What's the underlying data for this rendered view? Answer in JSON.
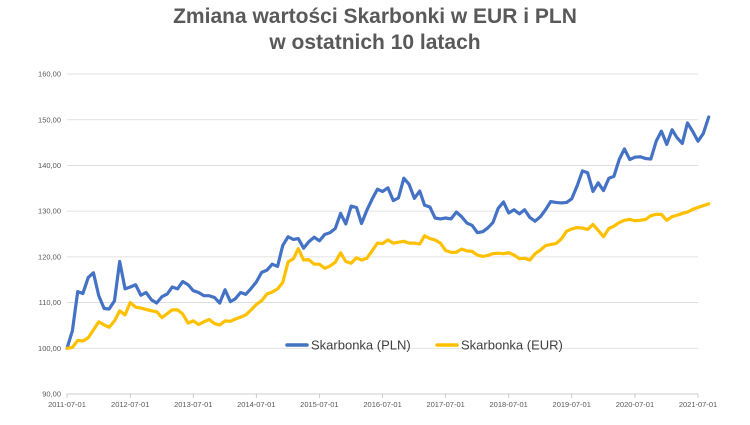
{
  "chart_data": {
    "type": "line",
    "title_lines": [
      "Zmiana wartości Skarbonki w EUR  i PLN",
      "w ostatnich 10 latach"
    ],
    "xlabel": "",
    "ylabel": "",
    "ylim": [
      90,
      160
    ],
    "y_ticks": [
      90,
      100,
      110,
      120,
      130,
      140,
      150,
      160
    ],
    "y_tick_labels": [
      "90,00",
      "100,00",
      "110,00",
      "120,00",
      "130,00",
      "140,00",
      "150,00",
      "160,00"
    ],
    "x_tick_labels": [
      "2011-07-01",
      "2012-07-01",
      "2013-07-01",
      "2014-07-01",
      "2015-07-01",
      "2016-07-01",
      "2017-07-01",
      "2018-07-01",
      "2019-07-01",
      "2020-07-01",
      "2021-07-01"
    ],
    "legend_position": "inside-bottom-center",
    "grid": "horizontal",
    "series": [
      {
        "name": "Skarbonka (PLN)",
        "color": "#4472C4",
        "points": [
          [
            "2011-07-01",
            100.0
          ],
          [
            "2011-08-01",
            103.8
          ],
          [
            "2011-09-01",
            112.4
          ],
          [
            "2011-10-01",
            112.0
          ],
          [
            "2011-11-01",
            115.5
          ],
          [
            "2011-12-01",
            116.5
          ],
          [
            "2012-01-01",
            111.5
          ],
          [
            "2012-02-01",
            108.7
          ],
          [
            "2012-03-01",
            108.6
          ],
          [
            "2012-04-01",
            110.4
          ],
          [
            "2012-05-01",
            119.0
          ],
          [
            "2012-06-01",
            113.0
          ],
          [
            "2012-07-01",
            113.4
          ],
          [
            "2012-08-01",
            113.9
          ],
          [
            "2012-09-01",
            111.6
          ],
          [
            "2012-10-01",
            112.2
          ],
          [
            "2012-11-01",
            110.6
          ],
          [
            "2012-12-01",
            109.9
          ],
          [
            "2013-01-01",
            111.3
          ],
          [
            "2013-02-01",
            111.9
          ],
          [
            "2013-03-01",
            113.4
          ],
          [
            "2013-04-01",
            113.0
          ],
          [
            "2013-05-01",
            114.6
          ],
          [
            "2013-06-01",
            113.9
          ],
          [
            "2013-07-01",
            112.6
          ],
          [
            "2013-08-01",
            112.2
          ],
          [
            "2013-09-01",
            111.5
          ],
          [
            "2013-10-01",
            111.5
          ],
          [
            "2013-11-01",
            111.1
          ],
          [
            "2013-12-01",
            109.9
          ],
          [
            "2014-01-01",
            112.8
          ],
          [
            "2014-02-01",
            110.2
          ],
          [
            "2014-03-01",
            110.8
          ],
          [
            "2014-04-01",
            112.2
          ],
          [
            "2014-05-01",
            111.8
          ],
          [
            "2014-06-01",
            113.1
          ],
          [
            "2014-07-01",
            114.5
          ],
          [
            "2014-08-01",
            116.6
          ],
          [
            "2014-09-01",
            117.1
          ],
          [
            "2014-10-01",
            118.4
          ],
          [
            "2014-11-01",
            117.9
          ],
          [
            "2014-12-01",
            122.5
          ],
          [
            "2015-01-01",
            124.4
          ],
          [
            "2015-02-01",
            123.8
          ],
          [
            "2015-03-01",
            124.0
          ],
          [
            "2015-04-01",
            121.9
          ],
          [
            "2015-05-01",
            123.3
          ],
          [
            "2015-06-01",
            124.3
          ],
          [
            "2015-07-01",
            123.5
          ],
          [
            "2015-08-01",
            124.9
          ],
          [
            "2015-09-01",
            125.3
          ],
          [
            "2015-10-01",
            126.2
          ],
          [
            "2015-11-01",
            129.5
          ],
          [
            "2015-12-01",
            127.2
          ],
          [
            "2016-01-01",
            131.1
          ],
          [
            "2016-02-01",
            130.8
          ],
          [
            "2016-03-01",
            127.3
          ],
          [
            "2016-04-01",
            130.2
          ],
          [
            "2016-05-01",
            132.6
          ],
          [
            "2016-06-01",
            134.8
          ],
          [
            "2016-07-01",
            134.3
          ],
          [
            "2016-08-01",
            135.1
          ],
          [
            "2016-09-01",
            132.3
          ],
          [
            "2016-10-01",
            132.9
          ],
          [
            "2016-11-01",
            137.2
          ],
          [
            "2016-12-01",
            135.9
          ],
          [
            "2017-01-01",
            132.8
          ],
          [
            "2017-02-01",
            134.4
          ],
          [
            "2017-03-01",
            131.3
          ],
          [
            "2017-04-01",
            130.9
          ],
          [
            "2017-05-01",
            128.5
          ],
          [
            "2017-06-01",
            128.3
          ],
          [
            "2017-07-01",
            128.5
          ],
          [
            "2017-08-01",
            128.3
          ],
          [
            "2017-09-01",
            129.8
          ],
          [
            "2017-10-01",
            128.8
          ],
          [
            "2017-11-01",
            127.4
          ],
          [
            "2017-12-01",
            126.9
          ],
          [
            "2018-01-01",
            125.3
          ],
          [
            "2018-02-01",
            125.5
          ],
          [
            "2018-03-01",
            126.3
          ],
          [
            "2018-04-01",
            127.5
          ],
          [
            "2018-05-01",
            130.6
          ],
          [
            "2018-06-01",
            132.0
          ],
          [
            "2018-07-01",
            129.6
          ],
          [
            "2018-08-01",
            130.3
          ],
          [
            "2018-09-01",
            129.4
          ],
          [
            "2018-10-01",
            130.3
          ],
          [
            "2018-11-01",
            128.6
          ],
          [
            "2018-12-01",
            127.8
          ],
          [
            "2019-01-01",
            128.8
          ],
          [
            "2019-02-01",
            130.4
          ],
          [
            "2019-03-01",
            132.1
          ],
          [
            "2019-04-01",
            131.9
          ],
          [
            "2019-05-01",
            131.8
          ],
          [
            "2019-06-01",
            131.9
          ],
          [
            "2019-07-01",
            132.7
          ],
          [
            "2019-08-01",
            135.5
          ],
          [
            "2019-09-01",
            138.8
          ],
          [
            "2019-10-01",
            138.4
          ],
          [
            "2019-11-01",
            134.3
          ],
          [
            "2019-12-01",
            136.2
          ],
          [
            "2020-01-01",
            134.5
          ],
          [
            "2020-02-01",
            137.2
          ],
          [
            "2020-03-01",
            137.6
          ],
          [
            "2020-04-01",
            141.3
          ],
          [
            "2020-05-01",
            143.6
          ],
          [
            "2020-06-01",
            141.3
          ],
          [
            "2020-07-01",
            141.8
          ],
          [
            "2020-08-01",
            141.9
          ],
          [
            "2020-09-01",
            141.5
          ],
          [
            "2020-10-01",
            141.4
          ],
          [
            "2020-11-01",
            145.3
          ],
          [
            "2020-12-01",
            147.5
          ],
          [
            "2021-01-01",
            144.6
          ],
          [
            "2021-02-01",
            147.8
          ],
          [
            "2021-03-01",
            146.1
          ],
          [
            "2021-04-01",
            144.8
          ],
          [
            "2021-05-01",
            149.3
          ],
          [
            "2021-06-01",
            147.4
          ],
          [
            "2021-07-01",
            145.3
          ],
          [
            "2021-08-01",
            147.0
          ],
          [
            "2021-09-01",
            150.6
          ]
        ]
      },
      {
        "name": "Skarbonka (EUR)",
        "color": "#FFC000",
        "points": [
          [
            "2011-07-01",
            100.0
          ],
          [
            "2011-08-01",
            100.2
          ],
          [
            "2011-09-01",
            101.7
          ],
          [
            "2011-10-01",
            101.6
          ],
          [
            "2011-11-01",
            102.3
          ],
          [
            "2011-12-01",
            104.0
          ],
          [
            "2012-01-01",
            105.8
          ],
          [
            "2012-02-01",
            105.1
          ],
          [
            "2012-03-01",
            104.6
          ],
          [
            "2012-04-01",
            106.0
          ],
          [
            "2012-05-01",
            108.2
          ],
          [
            "2012-06-01",
            107.3
          ],
          [
            "2012-07-01",
            110.0
          ],
          [
            "2012-08-01",
            109.0
          ],
          [
            "2012-09-01",
            108.8
          ],
          [
            "2012-10-01",
            108.5
          ],
          [
            "2012-11-01",
            108.2
          ],
          [
            "2012-12-01",
            108.0
          ],
          [
            "2013-01-01",
            106.7
          ],
          [
            "2013-02-01",
            107.6
          ],
          [
            "2013-03-01",
            108.4
          ],
          [
            "2013-04-01",
            108.4
          ],
          [
            "2013-05-01",
            107.5
          ],
          [
            "2013-06-01",
            105.5
          ],
          [
            "2013-07-01",
            106.0
          ],
          [
            "2013-08-01",
            105.2
          ],
          [
            "2013-09-01",
            105.8
          ],
          [
            "2013-10-01",
            106.3
          ],
          [
            "2013-11-01",
            105.4
          ],
          [
            "2013-12-01",
            105.1
          ],
          [
            "2014-01-01",
            106.0
          ],
          [
            "2014-02-01",
            105.9
          ],
          [
            "2014-03-01",
            106.4
          ],
          [
            "2014-04-01",
            106.8
          ],
          [
            "2014-05-01",
            107.3
          ],
          [
            "2014-06-01",
            108.4
          ],
          [
            "2014-07-01",
            109.6
          ],
          [
            "2014-08-01",
            110.4
          ],
          [
            "2014-09-01",
            111.9
          ],
          [
            "2014-10-01",
            112.3
          ],
          [
            "2014-11-01",
            113.0
          ],
          [
            "2014-12-01",
            114.4
          ],
          [
            "2015-01-01",
            118.9
          ],
          [
            "2015-02-01",
            119.6
          ],
          [
            "2015-03-01",
            121.8
          ],
          [
            "2015-04-01",
            119.3
          ],
          [
            "2015-05-01",
            119.4
          ],
          [
            "2015-06-01",
            118.4
          ],
          [
            "2015-07-01",
            118.4
          ],
          [
            "2015-08-01",
            117.5
          ],
          [
            "2015-09-01",
            118.0
          ],
          [
            "2015-10-01",
            118.8
          ],
          [
            "2015-11-01",
            120.9
          ],
          [
            "2015-12-01",
            119.0
          ],
          [
            "2016-01-01",
            118.6
          ],
          [
            "2016-02-01",
            119.8
          ],
          [
            "2016-03-01",
            119.3
          ],
          [
            "2016-04-01",
            119.7
          ],
          [
            "2016-05-01",
            121.3
          ],
          [
            "2016-06-01",
            123.0
          ],
          [
            "2016-07-01",
            122.9
          ],
          [
            "2016-08-01",
            123.7
          ],
          [
            "2016-09-01",
            123.0
          ],
          [
            "2016-10-01",
            123.2
          ],
          [
            "2016-11-01",
            123.4
          ],
          [
            "2016-12-01",
            123.0
          ],
          [
            "2017-01-01",
            123.0
          ],
          [
            "2017-02-01",
            122.8
          ],
          [
            "2017-03-01",
            124.6
          ],
          [
            "2017-04-01",
            124.0
          ],
          [
            "2017-05-01",
            123.7
          ],
          [
            "2017-06-01",
            123.0
          ],
          [
            "2017-07-01",
            121.4
          ],
          [
            "2017-08-01",
            121.0
          ],
          [
            "2017-09-01",
            121.0
          ],
          [
            "2017-10-01",
            121.7
          ],
          [
            "2017-11-01",
            121.3
          ],
          [
            "2017-12-01",
            121.2
          ],
          [
            "2018-01-01",
            120.4
          ],
          [
            "2018-02-01",
            120.1
          ],
          [
            "2018-03-01",
            120.3
          ],
          [
            "2018-04-01",
            120.7
          ],
          [
            "2018-05-01",
            120.8
          ],
          [
            "2018-06-01",
            120.7
          ],
          [
            "2018-07-01",
            120.9
          ],
          [
            "2018-08-01",
            120.4
          ],
          [
            "2018-09-01",
            119.6
          ],
          [
            "2018-10-01",
            119.7
          ],
          [
            "2018-11-01",
            119.3
          ],
          [
            "2018-12-01",
            120.7
          ],
          [
            "2019-01-01",
            121.5
          ],
          [
            "2019-02-01",
            122.5
          ],
          [
            "2019-03-01",
            122.7
          ],
          [
            "2019-04-01",
            122.9
          ],
          [
            "2019-05-01",
            123.9
          ],
          [
            "2019-06-01",
            125.6
          ],
          [
            "2019-07-01",
            126.1
          ],
          [
            "2019-08-01",
            126.4
          ],
          [
            "2019-09-01",
            126.3
          ],
          [
            "2019-10-01",
            126.0
          ],
          [
            "2019-11-01",
            127.1
          ],
          [
            "2019-12-01",
            125.8
          ],
          [
            "2020-01-01",
            124.4
          ],
          [
            "2020-02-01",
            126.2
          ],
          [
            "2020-03-01",
            126.7
          ],
          [
            "2020-04-01",
            127.5
          ],
          [
            "2020-05-01",
            128.0
          ],
          [
            "2020-06-01",
            128.2
          ],
          [
            "2020-07-01",
            127.9
          ],
          [
            "2020-08-01",
            128.0
          ],
          [
            "2020-09-01",
            128.2
          ],
          [
            "2020-10-01",
            129.0
          ],
          [
            "2020-11-01",
            129.3
          ],
          [
            "2020-12-01",
            129.3
          ],
          [
            "2021-01-01",
            128.0
          ],
          [
            "2021-02-01",
            128.8
          ],
          [
            "2021-03-01",
            129.1
          ],
          [
            "2021-04-01",
            129.5
          ],
          [
            "2021-05-01",
            129.8
          ],
          [
            "2021-06-01",
            130.4
          ],
          [
            "2021-07-01",
            130.8
          ],
          [
            "2021-08-01",
            131.2
          ],
          [
            "2021-09-01",
            131.6
          ]
        ]
      }
    ]
  }
}
